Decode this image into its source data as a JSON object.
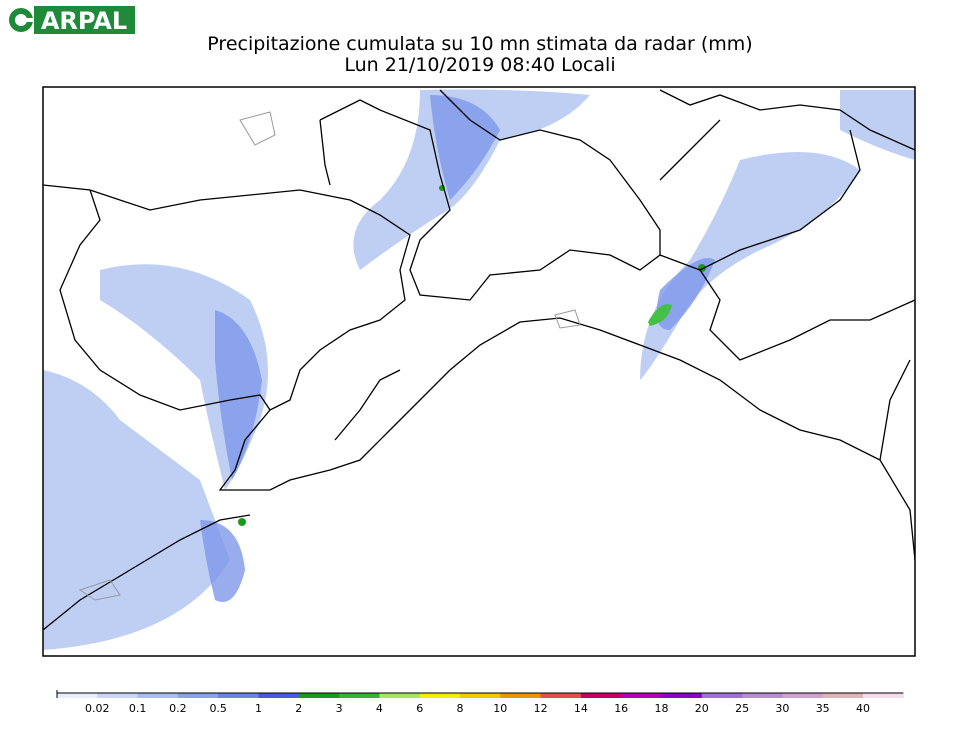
{
  "logo": "ARPAL",
  "title": "Precipitazione cumulata su 10 mn stimata da radar (mm)",
  "subtitle": "Lun 21/10/2019 08:40 Locali",
  "legend": {
    "ticks": [
      0.02,
      0.1,
      0.2,
      0.5,
      1,
      2,
      3,
      4,
      6,
      8,
      10,
      12,
      14,
      16,
      18,
      20,
      25,
      30,
      35,
      40
    ],
    "colors": [
      "#e8eefb",
      "#c9d6f5",
      "#aabdf0",
      "#8aa1ec",
      "#6c84e6",
      "#4a5ae0",
      "#1a9a1a",
      "#36b236",
      "#a6e65c",
      "#f0f000",
      "#f0c800",
      "#e69600",
      "#e05050",
      "#c80064",
      "#b400b4",
      "#8c00c8",
      "#a070d8",
      "#b48cd8",
      "#d0a0d0",
      "#dcb4b4",
      "#f4dcec"
    ]
  }
}
